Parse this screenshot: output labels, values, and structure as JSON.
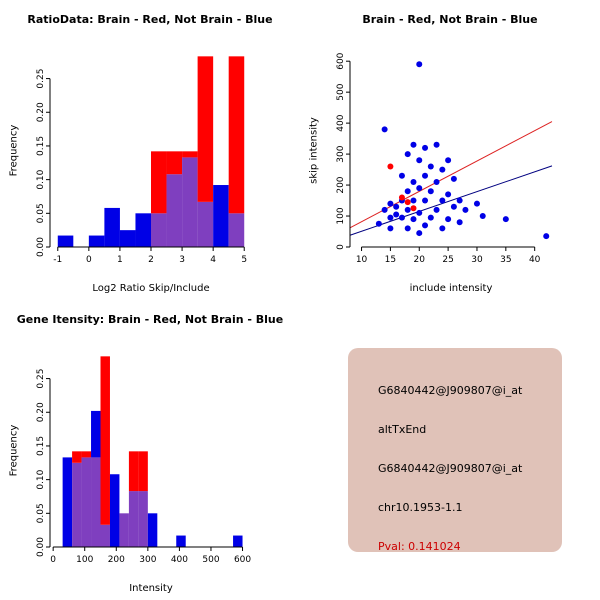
{
  "colors": {
    "red": "#ff0000",
    "blue": "#0000e6",
    "overlap": "#7f3fbf",
    "red_line": "#dd2222",
    "navy_line": "#000080",
    "axis": "#000000"
  },
  "panels": {
    "info": {
      "lines": [
        "G6840442@J909807@i_at",
        "altTxEnd",
        "G6840442@J909807@i_at",
        "chr10.1953-1.1"
      ],
      "pval": "Pval: 0.141024",
      "bg": "#e0c2b8",
      "pval_color": "#cc0000"
    }
  },
  "chart_data": [
    {
      "type": "histogram",
      "title": "RatioData: Brain - Red, Not Brain - Blue",
      "xlabel": "Log2 Ratio Skip/Include",
      "ylabel": "Frequency",
      "series_note": "red = Brain, blue = Not Brain, purple = overlap",
      "xlim": [
        -1.25,
        5.25
      ],
      "ylim": [
        0,
        0.285
      ],
      "xticks": [
        -1,
        0,
        1,
        2,
        3,
        4,
        5
      ],
      "ytick_vals": [
        0,
        0.05,
        0.1,
        0.15,
        0.2,
        0.25
      ],
      "ytick_labels": [
        "0.00",
        "0.05",
        "0.10",
        "0.15",
        "0.20",
        "0.25"
      ],
      "bin_width": 0.5,
      "bins": [
        {
          "x": -1.0,
          "red": 0,
          "blue": 0.017
        },
        {
          "x": -0.5,
          "red": 0,
          "blue": 0
        },
        {
          "x": 0.0,
          "red": 0,
          "blue": 0.017
        },
        {
          "x": 0.5,
          "red": 0,
          "blue": 0.058
        },
        {
          "x": 1.0,
          "red": 0,
          "blue": 0.025
        },
        {
          "x": 1.5,
          "red": 0,
          "blue": 0.05
        },
        {
          "x": 2.0,
          "red": 0.142,
          "blue": 0.05
        },
        {
          "x": 2.5,
          "red": 0.142,
          "blue": 0.108
        },
        {
          "x": 3.0,
          "red": 0.142,
          "blue": 0.133
        },
        {
          "x": 3.5,
          "red": 0.283,
          "blue": 0.067
        },
        {
          "x": 4.0,
          "red": 0,
          "blue": 0.092
        },
        {
          "x": 4.5,
          "red": 0.283,
          "blue": 0.05
        }
      ]
    },
    {
      "type": "scatter",
      "title": "Brain - Red, Not Brain - Blue",
      "xlabel": "include intensity",
      "ylabel": "skip intensity",
      "xlim": [
        8,
        43
      ],
      "ylim": [
        0,
        620
      ],
      "xticks": [
        10,
        15,
        20,
        25,
        30,
        35,
        40
      ],
      "yticks": [
        0,
        100,
        200,
        300,
        400,
        500,
        600
      ],
      "blue_points": [
        [
          13,
          75
        ],
        [
          14,
          120
        ],
        [
          14,
          380
        ],
        [
          15,
          95
        ],
        [
          15,
          140
        ],
        [
          15,
          60
        ],
        [
          16,
          130
        ],
        [
          16,
          105
        ],
        [
          17,
          230
        ],
        [
          17,
          150
        ],
        [
          17,
          95
        ],
        [
          18,
          300
        ],
        [
          18,
          180
        ],
        [
          18,
          120
        ],
        [
          18,
          60
        ],
        [
          19,
          330
        ],
        [
          19,
          210
        ],
        [
          19,
          150
        ],
        [
          19,
          90
        ],
        [
          20,
          590
        ],
        [
          20,
          280
        ],
        [
          20,
          190
        ],
        [
          20,
          110
        ],
        [
          20,
          45
        ],
        [
          21,
          320
        ],
        [
          21,
          230
        ],
        [
          21,
          150
        ],
        [
          21,
          70
        ],
        [
          22,
          260
        ],
        [
          22,
          180
        ],
        [
          22,
          95
        ],
        [
          23,
          330
        ],
        [
          23,
          210
        ],
        [
          23,
          120
        ],
        [
          24,
          250
        ],
        [
          24,
          150
        ],
        [
          24,
          60
        ],
        [
          25,
          280
        ],
        [
          25,
          170
        ],
        [
          25,
          90
        ],
        [
          26,
          220
        ],
        [
          26,
          130
        ],
        [
          27,
          150
        ],
        [
          27,
          80
        ],
        [
          28,
          120
        ],
        [
          30,
          140
        ],
        [
          31,
          100
        ],
        [
          35,
          90
        ],
        [
          42,
          35
        ]
      ],
      "red_points": [
        [
          15,
          260
        ],
        [
          17,
          160
        ],
        [
          18,
          145
        ],
        [
          19,
          125
        ]
      ],
      "red_line": {
        "x1": 8,
        "y1": 62,
        "x2": 43,
        "y2": 405
      },
      "blue_line": {
        "x1": 8,
        "y1": 38,
        "x2": 43,
        "y2": 262
      }
    },
    {
      "type": "histogram",
      "title": "Gene Itensity: Brain - Red, Not Brain - Blue",
      "xlabel": "Intensity",
      "ylabel": "Frequency",
      "series_note": "red = Brain, blue = Not Brain, purple = overlap",
      "xlim": [
        -10,
        630
      ],
      "ylim": [
        0,
        0.285
      ],
      "xticks": [
        0,
        100,
        200,
        300,
        400,
        500,
        600
      ],
      "ytick_vals": [
        0,
        0.05,
        0.1,
        0.15,
        0.2,
        0.25
      ],
      "ytick_labels": [
        "0.00",
        "0.05",
        "0.10",
        "0.15",
        "0.20",
        "0.25"
      ],
      "bin_width": 30,
      "bins": [
        {
          "x": 30,
          "red": 0,
          "blue": 0.133
        },
        {
          "x": 60,
          "red": 0.142,
          "blue": 0.125
        },
        {
          "x": 90,
          "red": 0.142,
          "blue": 0.133
        },
        {
          "x": 120,
          "red": 0.133,
          "blue": 0.202
        },
        {
          "x": 150,
          "red": 0.283,
          "blue": 0.033
        },
        {
          "x": 180,
          "red": 0,
          "blue": 0.108
        },
        {
          "x": 210,
          "red": 0.05,
          "blue": 0.05
        },
        {
          "x": 240,
          "red": 0.142,
          "blue": 0.083
        },
        {
          "x": 270,
          "red": 0.142,
          "blue": 0.083
        },
        {
          "x": 300,
          "red": 0,
          "blue": 0.05
        },
        {
          "x": 390,
          "red": 0,
          "blue": 0.017
        },
        {
          "x": 570,
          "red": 0,
          "blue": 0.017
        }
      ]
    }
  ]
}
